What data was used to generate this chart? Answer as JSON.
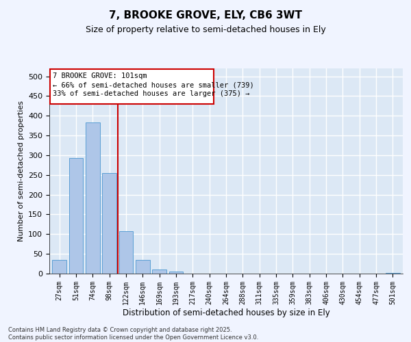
{
  "title": "7, BROOKE GROVE, ELY, CB6 3WT",
  "subtitle": "Size of property relative to semi-detached houses in Ely",
  "xlabel": "Distribution of semi-detached houses by size in Ely",
  "ylabel": "Number of semi-detached properties",
  "categories": [
    "27sqm",
    "51sqm",
    "74sqm",
    "98sqm",
    "122sqm",
    "146sqm",
    "169sqm",
    "193sqm",
    "217sqm",
    "240sqm",
    "264sqm",
    "288sqm",
    "311sqm",
    "335sqm",
    "359sqm",
    "383sqm",
    "406sqm",
    "430sqm",
    "454sqm",
    "477sqm",
    "501sqm"
  ],
  "values": [
    35,
    293,
    383,
    255,
    108,
    35,
    10,
    5,
    0,
    0,
    0,
    0,
    0,
    0,
    0,
    0,
    0,
    0,
    0,
    0,
    2
  ],
  "bar_color": "#aec6e8",
  "bar_edge_color": "#5a9fd4",
  "vline_x": 3.5,
  "vline_color": "#cc0000",
  "annotation_title": "7 BROOKE GROVE: 101sqm",
  "annotation_line1": "← 66% of semi-detached houses are smaller (739)",
  "annotation_line2": "33% of semi-detached houses are larger (375) →",
  "annotation_box_color": "#cc0000",
  "ylim": [
    0,
    520
  ],
  "yticks": [
    0,
    50,
    100,
    150,
    200,
    250,
    300,
    350,
    400,
    450,
    500
  ],
  "background_color": "#dce8f5",
  "grid_color": "#ffffff",
  "footer_line1": "Contains HM Land Registry data © Crown copyright and database right 2025.",
  "footer_line2": "Contains public sector information licensed under the Open Government Licence v3.0."
}
